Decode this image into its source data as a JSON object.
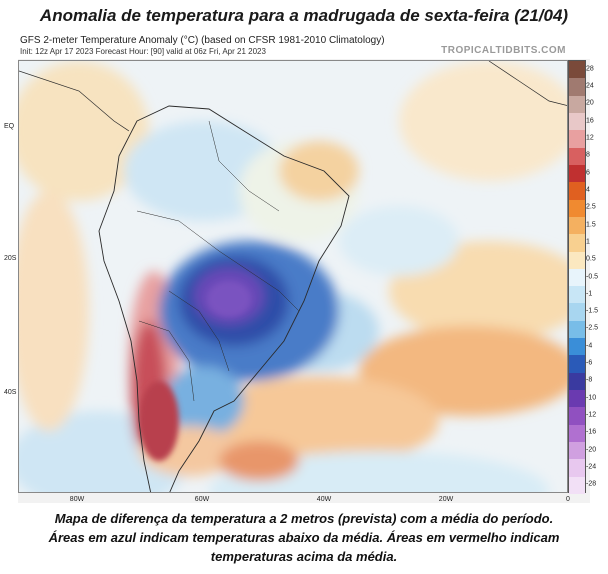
{
  "title": "Anomalia de temperatura para a madrugada de sexta-feira (21/04)",
  "map": {
    "header_line1": "GFS 2-meter Temperature Anomaly (°C) (based on CFSR 1981-2010 Climatology)",
    "header_line2": "Init: 12z Apr 17 2023   Forecast Hour: [90]   valid at 06z Fri, Apr 21 2023",
    "brand": "TROPICALTIDBITS.COM",
    "lat_labels": [
      "EQ",
      "20S",
      "40S"
    ],
    "lon_labels": [
      "80W",
      "60W",
      "40W",
      "20W",
      "0"
    ],
    "colorbar_labels": [
      "28",
      "24",
      "20",
      "16",
      "12",
      "8",
      "6",
      "4",
      "2.5",
      "1.5",
      "1",
      "0.5",
      "-0.5",
      "-1",
      "-1.5",
      "-2.5",
      "-4",
      "-6",
      "-8",
      "-10",
      "-12",
      "-16",
      "-20",
      "-24",
      "-28"
    ],
    "colorbar_colors": [
      "#7a4a3a",
      "#a07a70",
      "#c8a8a0",
      "#e8c8c8",
      "#e8a0a0",
      "#d86060",
      "#c03030",
      "#e06020",
      "#f08a30",
      "#f4b060",
      "#f8d090",
      "#fbe8c0",
      "#e8f4fb",
      "#c8e6f6",
      "#a8d6f0",
      "#78bde8",
      "#3a8ed8",
      "#2a5ab8",
      "#3a3aa0",
      "#6a3ab0",
      "#9050c0",
      "#b070d0",
      "#d0a0e0",
      "#e8c8ef",
      "#f2e0f6"
    ]
  },
  "caption": {
    "line1": "Mapa de diferença da temperatura a 2 metros (prevista) com a média do período.",
    "line2": "Áreas em azul indicam temperaturas abaixo da média. Áreas em vermelho indicam",
    "line3": "temperaturas acima da média."
  }
}
